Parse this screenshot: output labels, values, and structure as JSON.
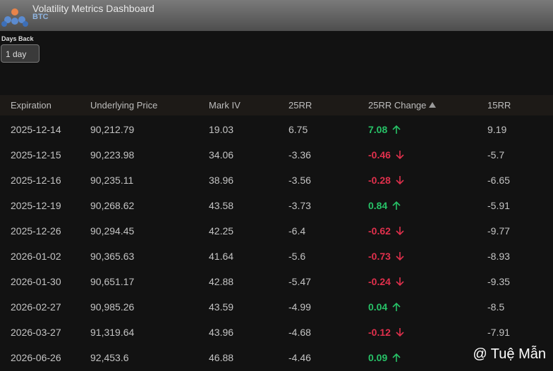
{
  "header": {
    "title": "Volatility Metrics Dashboard",
    "subtitle": "BTC"
  },
  "controls": {
    "days_back_label": "Days Back",
    "days_back_value": "1 day"
  },
  "table": {
    "columns": [
      "Expiration",
      "Underlying Price",
      "Mark IV",
      "25RR",
      "25RR Change",
      "15RR"
    ],
    "rows": [
      [
        "2025-12-14",
        "90,212.79",
        "19.03",
        "6.75",
        "7.08",
        "9.19"
      ],
      [
        "2025-12-15",
        "90,223.98",
        "34.06",
        "-3.36",
        "-0.46",
        "-5.7"
      ],
      [
        "2025-12-16",
        "90,235.11",
        "38.96",
        "-3.56",
        "-0.28",
        "-6.65"
      ],
      [
        "2025-12-19",
        "90,268.62",
        "43.58",
        "-3.73",
        "0.84",
        "-5.91"
      ],
      [
        "2025-12-26",
        "90,294.45",
        "42.25",
        "-6.4",
        "-0.62",
        "-9.77"
      ],
      [
        "2026-01-02",
        "90,365.63",
        "41.64",
        "-5.6",
        "-0.73",
        "-8.93"
      ],
      [
        "2026-01-30",
        "90,651.17",
        "42.88",
        "-5.47",
        "-0.24",
        "-9.35"
      ],
      [
        "2026-02-27",
        "90,985.26",
        "43.59",
        "-4.99",
        "0.04",
        "-8.5"
      ],
      [
        "2026-03-27",
        "91,319.64",
        "43.96",
        "-4.68",
        "-0.12",
        "-7.91"
      ],
      [
        "2026-06-26",
        "92,453.6",
        "46.88",
        "-4.46",
        "0.09",
        null
      ]
    ]
  },
  "watermark": "@ Tuệ Mẫn"
}
